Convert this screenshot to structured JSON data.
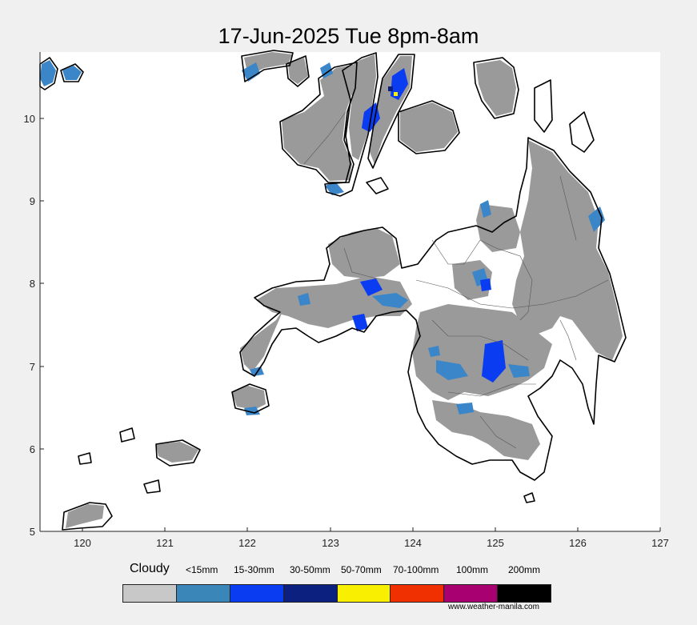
{
  "title": "17-Jun-2025 Tue 8pm-8am",
  "map": {
    "x_ticks": [
      "120",
      "121",
      "122",
      "123",
      "124",
      "125",
      "126",
      "127"
    ],
    "y_ticks": [
      "10",
      "9",
      "8",
      "7",
      "6",
      "5"
    ],
    "colors": {
      "cloudy": "#9a9a9a",
      "light": "#3a86c8",
      "moderate": "#0a3cf2"
    }
  },
  "legend": {
    "title": "Cloudy",
    "labels": [
      "<15mm",
      "15-30mm",
      "30-50mm",
      "50-70mm",
      "70-100mm",
      "100mm",
      "200mm"
    ],
    "colors": [
      "#c8c8c8",
      "#3a86b8",
      "#0a3cf2",
      "#0c2080",
      "#f8f000",
      "#f03000",
      "#a80070",
      "#000000"
    ]
  },
  "credit": "www.weather-manila.com"
}
